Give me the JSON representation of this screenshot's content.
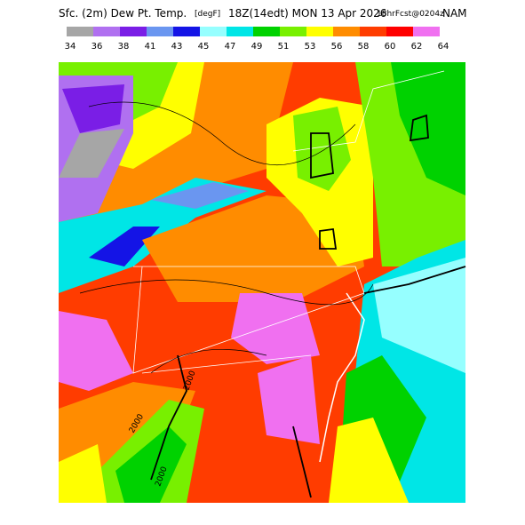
{
  "header": {
    "field": "Sfc. (2m) Dew Pt. Temp.",
    "units": "[degF]",
    "valid": "18Z(14edt) MON 13 Apr 2026",
    "forecast": "18hrFcst@0204z",
    "model": "NAM"
  },
  "colorbar": {
    "levels": [
      34,
      36,
      38,
      41,
      43,
      45,
      47,
      49,
      51,
      53,
      56,
      58,
      60,
      62,
      64
    ],
    "colors": [
      "#a6a6a6",
      "#b070f0",
      "#7a1ee6",
      "#6a96f0",
      "#1414e6",
      "#96ffff",
      "#00e6e6",
      "#00d200",
      "#78f000",
      "#ffff00",
      "#ff8c00",
      "#ff3c00",
      "#ff0000",
      "#f070f0"
    ]
  },
  "map": {
    "contour_labels": [
      "2000",
      "2000",
      "2000"
    ]
  }
}
